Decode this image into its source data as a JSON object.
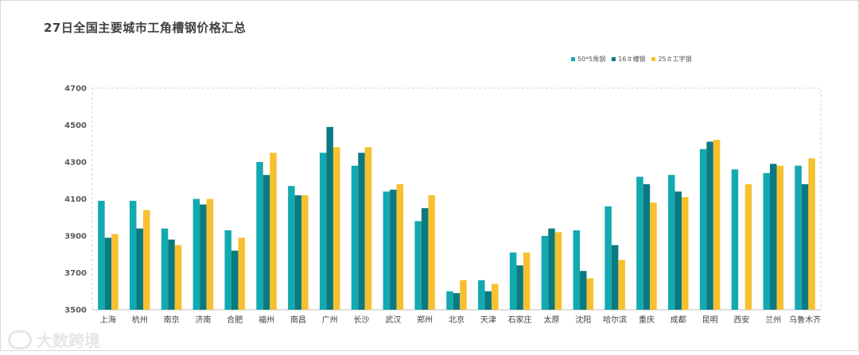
{
  "chart_data": {
    "type": "bar",
    "title": "27日全国主要城市工角槽钢价格汇总",
    "categories": [
      "上海",
      "杭州",
      "南京",
      "济南",
      "合肥",
      "福州",
      "南昌",
      "广州",
      "长沙",
      "武汉",
      "郑州",
      "北京",
      "天津",
      "石家庄",
      "太原",
      "沈阳",
      "哈尔滨",
      "重庆",
      "成都",
      "昆明",
      "西安",
      "兰州",
      "乌鲁木齐"
    ],
    "ylim": [
      3500,
      4700
    ],
    "yticks": [
      3500,
      3700,
      3900,
      4100,
      4300,
      4500,
      4700
    ],
    "legend_position": "top-right",
    "series": [
      {
        "name": "50*5角钢",
        "color": "#13a9b0",
        "values": [
          4090,
          4090,
          3940,
          4100,
          3930,
          4300,
          4170,
          4350,
          4280,
          4140,
          3980,
          3600,
          3660,
          3810,
          3900,
          3930,
          4060,
          4220,
          4230,
          4370,
          4260,
          4240,
          4280
        ]
      },
      {
        "name": "16＃槽钢",
        "color": "#0b7a80",
        "values": [
          3890,
          3940,
          3880,
          4070,
          3820,
          4230,
          4120,
          4490,
          4350,
          4150,
          4050,
          3590,
          3600,
          3740,
          3940,
          3710,
          3850,
          4180,
          4140,
          4410,
          null,
          4290,
          4180
        ]
      },
      {
        "name": "25＃工字钢",
        "color": "#f7c02e",
        "values": [
          3910,
          4040,
          3850,
          4100,
          3890,
          4350,
          4120,
          4380,
          4380,
          4180,
          4120,
          3660,
          3640,
          3810,
          3920,
          3670,
          3770,
          4080,
          4110,
          4420,
          4180,
          4280,
          4320
        ]
      }
    ]
  },
  "watermark": {
    "text": "大数跨境",
    "icon": "logo-icon"
  }
}
